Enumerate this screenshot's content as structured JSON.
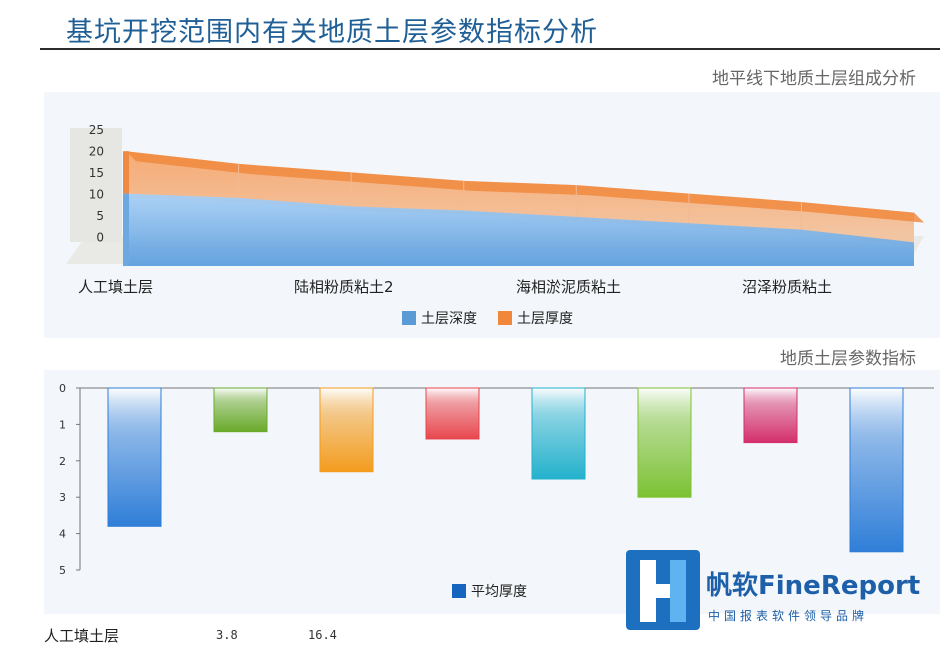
{
  "page": {
    "title": "基坑开挖范围内有关地质土层参数指标分析"
  },
  "colors": {
    "title": "#1f5f96",
    "depth": "#5b9bd5",
    "thickness": "#f0873a"
  },
  "chart_data": [
    {
      "type": "area",
      "title": "地平线下地质土层组成分析",
      "categories": [
        "人工填土层",
        "陆相粉质粘土2",
        "海相淤泥质粘土",
        "沼泽粉质粘土"
      ],
      "y_ticks": [
        "25",
        "20",
        "15",
        "10",
        "5",
        "0"
      ],
      "ylim": [
        0,
        25
      ],
      "x": [
        0,
        1,
        2,
        3,
        4,
        5,
        6,
        7
      ],
      "series": [
        {
          "name": "土层深度",
          "values": [
            10,
            9,
            7,
            6,
            4.5,
            3,
            1.5,
            -1.5
          ]
        },
        {
          "name": "土层厚度",
          "values": [
            10,
            8,
            8,
            7,
            7.5,
            7,
            6.5,
            7
          ]
        }
      ],
      "legend": "bottom"
    },
    {
      "type": "bar",
      "title": "地质土层参数指标",
      "y_ticks": [
        "0",
        "1",
        "2",
        "3",
        "4",
        "5"
      ],
      "ylim": [
        0,
        5
      ],
      "y_inverted": true,
      "values": [
        3.8,
        1.2,
        2.3,
        1.4,
        2.5,
        3.0,
        1.5,
        4.5
      ],
      "bar_colors": [
        "#2f7ed8",
        "#6aaa2a",
        "#f39c1e",
        "#e8464d",
        "#23b1cc",
        "#7cc233",
        "#d42f6b",
        "#2f7ed8"
      ],
      "series": [
        {
          "name": "平均厚度",
          "values": [
            3.8,
            1.2,
            2.3,
            1.4,
            2.5,
            3.0,
            1.5,
            4.5
          ]
        }
      ],
      "legend": "bottom"
    }
  ],
  "footer": {
    "label": "人工填土层",
    "value1": "3.8",
    "value2": "16.4"
  },
  "logo": {
    "name": "帆软FineReport",
    "slogan": "中国报表软件领导品牌"
  }
}
